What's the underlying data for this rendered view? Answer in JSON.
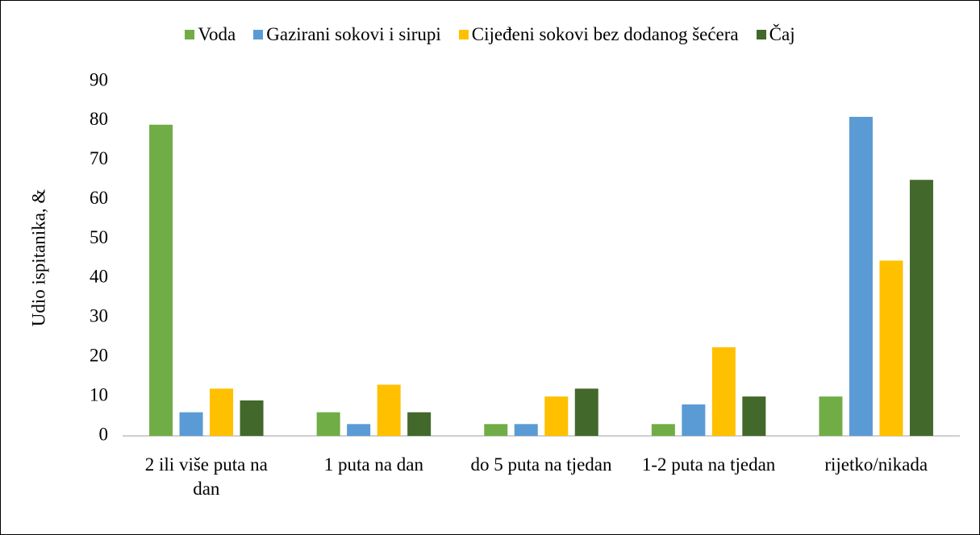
{
  "chart_data": {
    "type": "bar",
    "y_label": "Udio ispitanika, &",
    "categories": [
      "2 ili više puta na dan",
      "1 puta na dan",
      "do 5 puta na tjedan",
      "1-2 puta na tjedan",
      "rijetko/nikada"
    ],
    "series": [
      {
        "name": "Voda",
        "color": "#70ad47",
        "values": [
          79,
          6,
          3,
          3,
          10
        ]
      },
      {
        "name": "Gazirani sokovi i sirupi",
        "color": "#5b9bd5",
        "values": [
          6,
          3,
          3,
          8,
          81
        ]
      },
      {
        "name": "Cijeđeni sokovi bez dodanog šećera",
        "color": "#ffc000",
        "values": [
          12,
          13,
          10,
          22.5,
          44.5
        ]
      },
      {
        "name": "Čaj",
        "color": "#43682b",
        "values": [
          9,
          6,
          12,
          10,
          65
        ]
      }
    ],
    "ylim": [
      0,
      90
    ],
    "yticks": [
      0,
      10,
      20,
      30,
      40,
      50,
      60,
      70,
      80,
      90
    ],
    "grid": false,
    "legend": "top"
  }
}
